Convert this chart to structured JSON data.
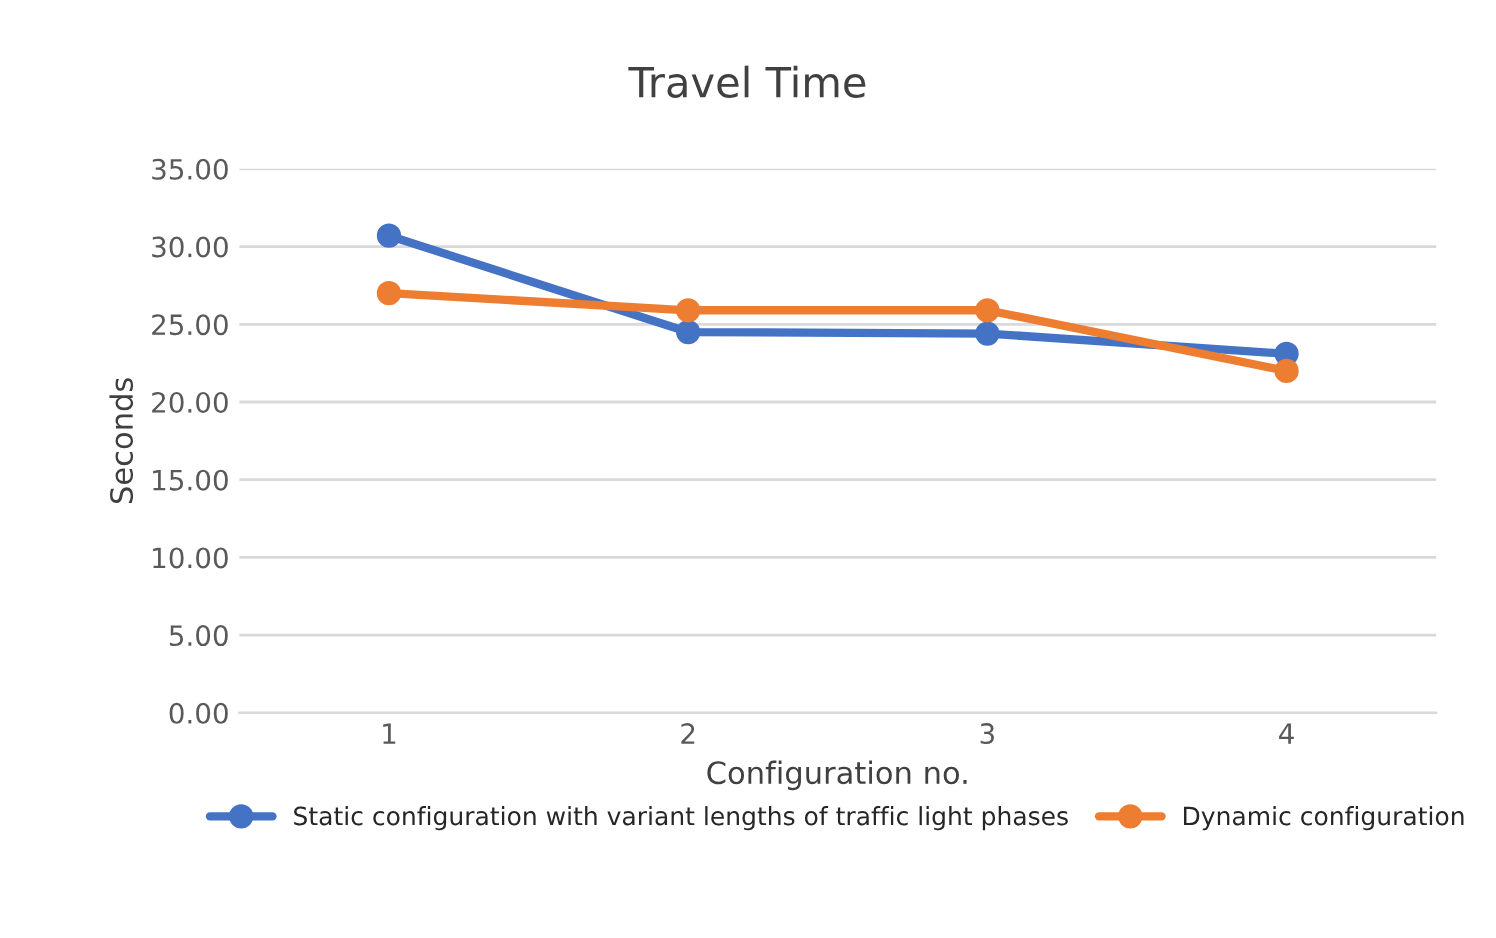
{
  "chart_data": {
    "type": "line",
    "title": "Travel Time",
    "xlabel": "Configuration no.",
    "ylabel": "Seconds",
    "categories": [
      "1",
      "2",
      "3",
      "4"
    ],
    "series": [
      {
        "name": "Static configuration with variant lengths of traffic light phases",
        "color": "#4472c4",
        "values": [
          30.7,
          24.5,
          24.4,
          23.1
        ]
      },
      {
        "name": "Dynamic configuration",
        "color": "#ed7d31",
        "values": [
          27.0,
          25.9,
          25.9,
          22.0
        ]
      }
    ],
    "ylim": [
      0,
      35
    ],
    "yticks": [
      {
        "value": 0,
        "label": "0.00"
      },
      {
        "value": 5,
        "label": "5.00"
      },
      {
        "value": 10,
        "label": "10.00"
      },
      {
        "value": 15,
        "label": "15.00"
      },
      {
        "value": 20,
        "label": "20.00"
      },
      {
        "value": 25,
        "label": "25.00"
      },
      {
        "value": 30,
        "label": "30.00"
      },
      {
        "value": 35,
        "label": "35.00"
      }
    ],
    "grid": "y",
    "legend": "bottom",
    "marker": "circle",
    "line_style": "solid"
  }
}
